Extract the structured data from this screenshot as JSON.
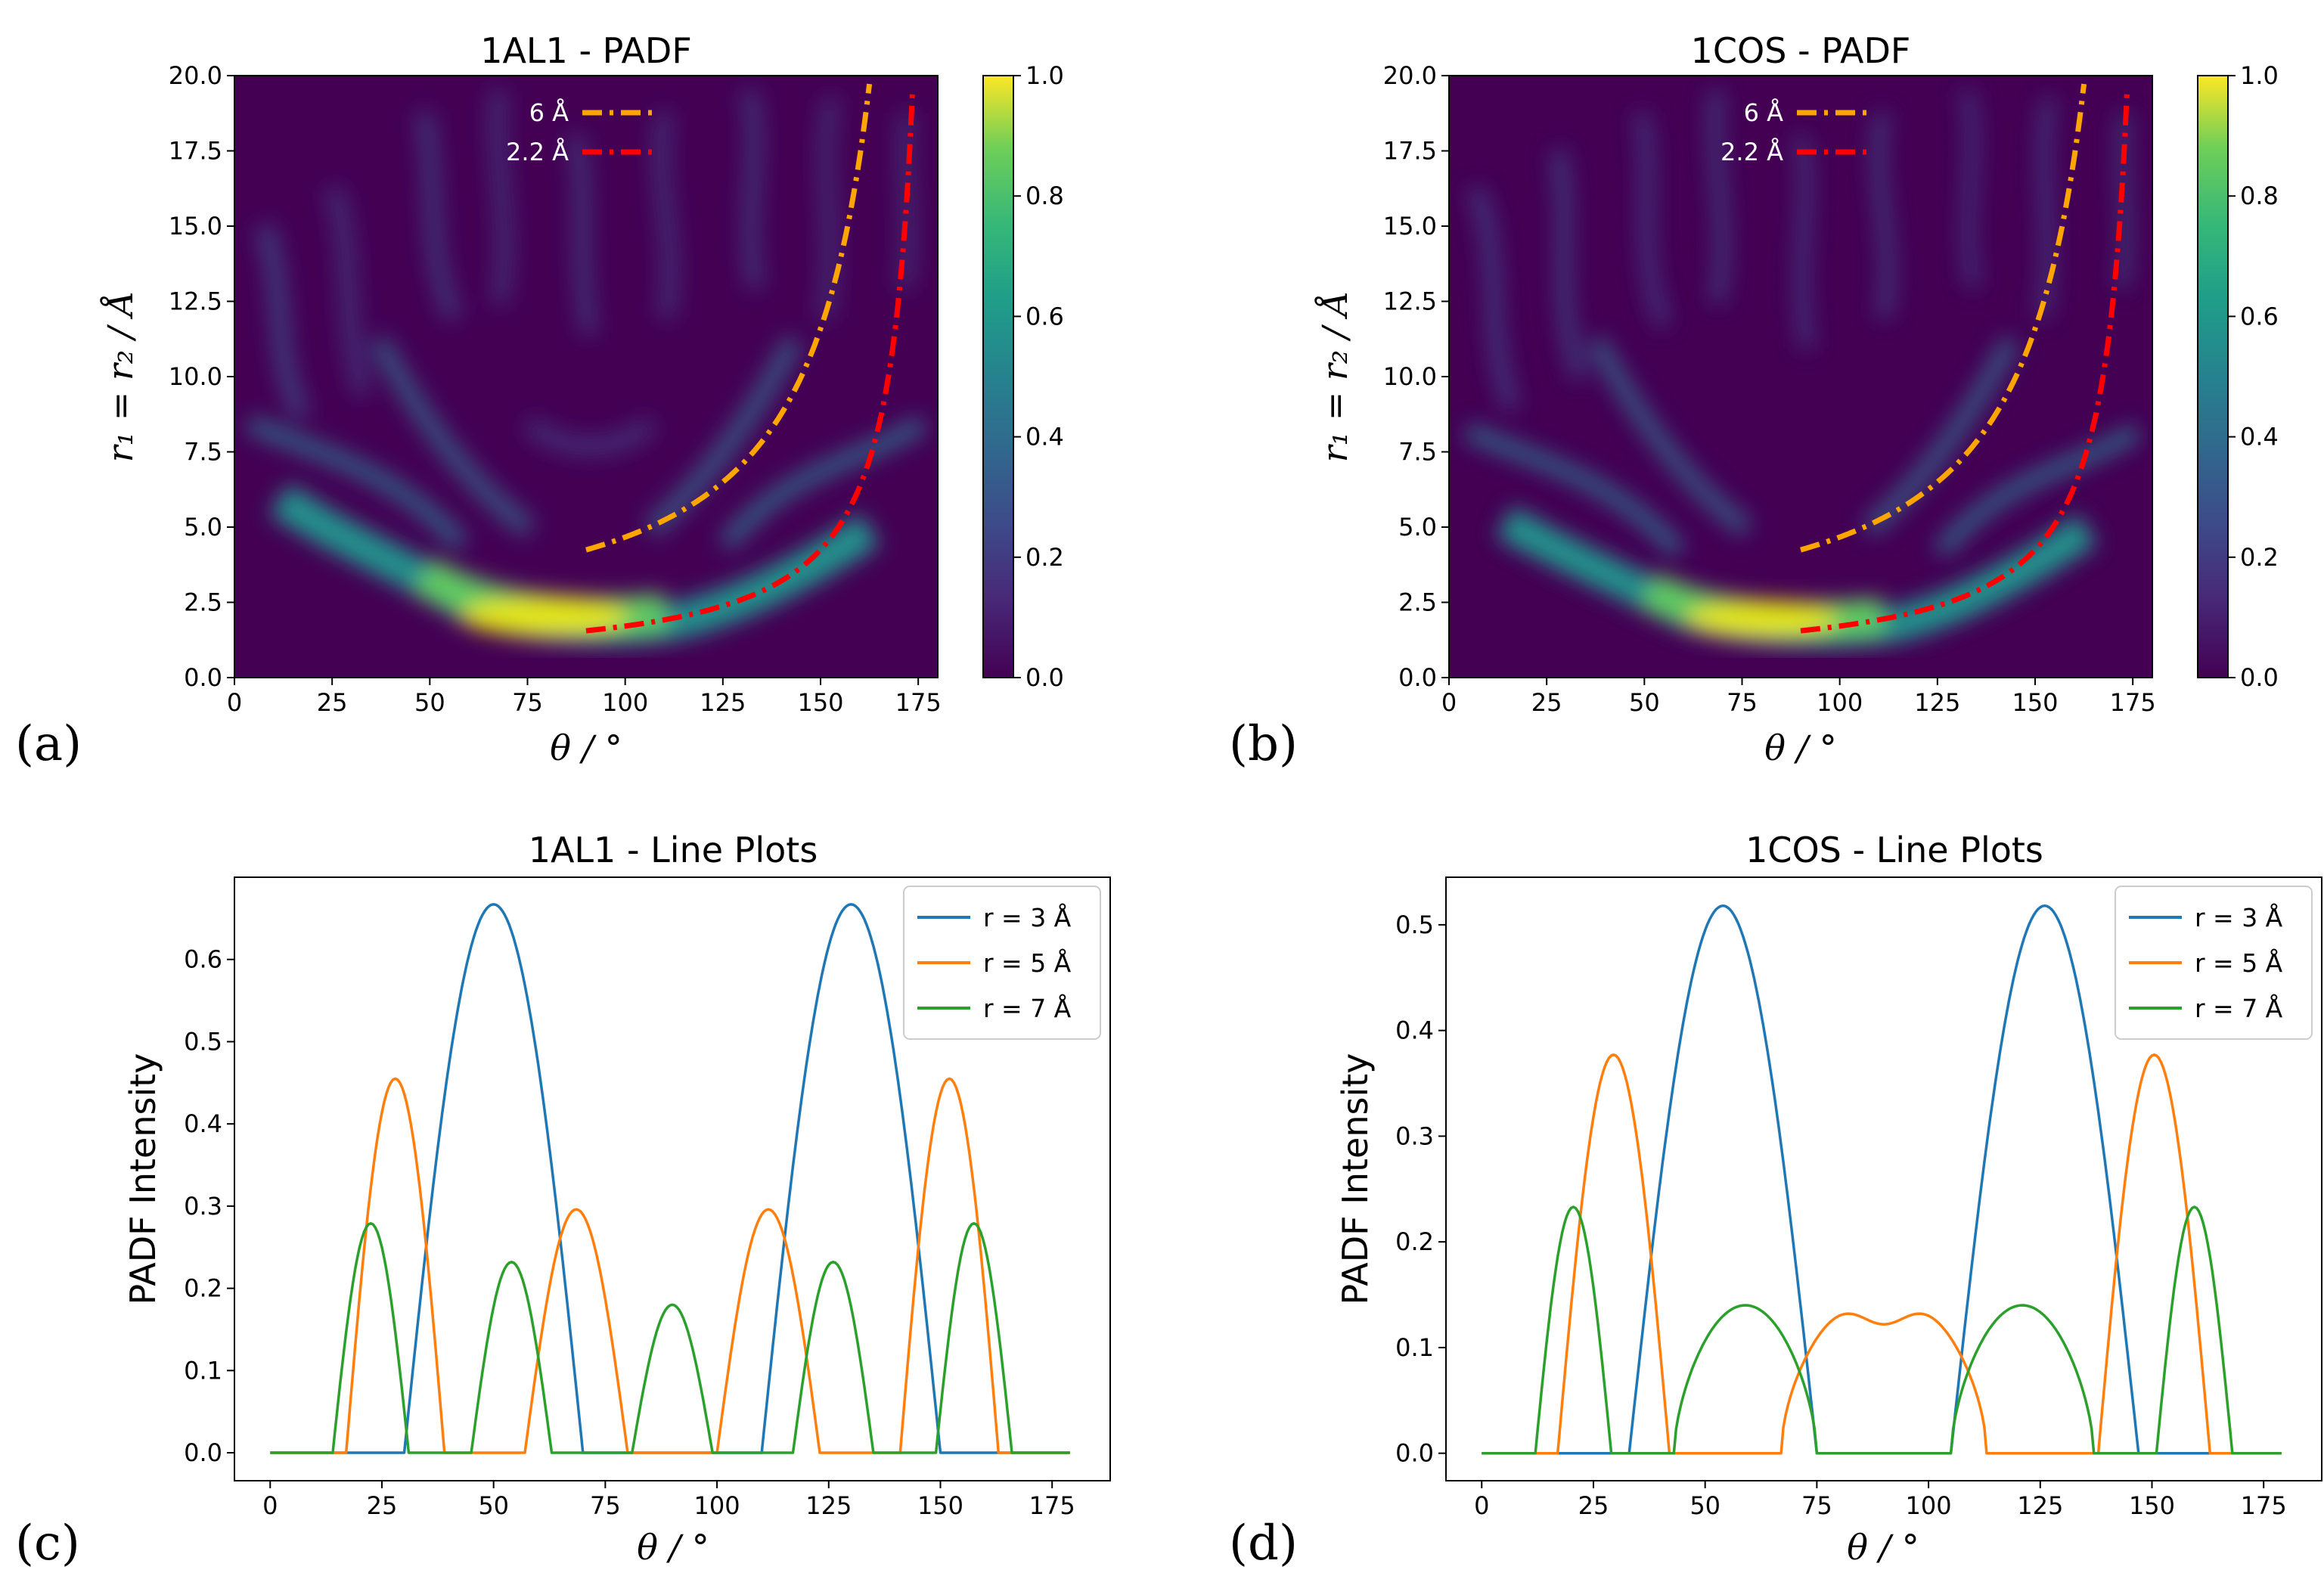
{
  "colors": {
    "viridis_dark": "#440154",
    "series_blue": "#1f77b4",
    "series_orange": "#ff7f0e",
    "series_green": "#2ca02c",
    "guide_orange": "#ffa500",
    "guide_red": "#ff0000"
  },
  "chart_data": [
    {
      "id": "a",
      "type": "heatmap",
      "panel_label": "(a)",
      "title": "1AL1 - PADF",
      "xlabel": "θ / °",
      "ylabel": "r₁ = r₂ / Å",
      "xlim": [
        0,
        180
      ],
      "ylim": [
        0,
        20
      ],
      "xticks": [
        "0",
        "25",
        "50",
        "75",
        "100",
        "125",
        "150",
        "175"
      ],
      "yticks": [
        "0.0",
        "2.5",
        "5.0",
        "7.5",
        "10.0",
        "12.5",
        "15.0",
        "17.5",
        "20.0"
      ],
      "colorbar": {
        "min": 0,
        "max": 1,
        "ticks": [
          "0.0",
          "0.2",
          "0.4",
          "0.6",
          "0.8",
          "1.0"
        ],
        "colormap": "viridis"
      },
      "overlay_lines": [
        {
          "label": "6 Å",
          "color": "#ffa500",
          "style": "dash-dot",
          "distance": 6,
          "theta_start": 90
        },
        {
          "label": "2.2 Å",
          "color": "#ff0000",
          "style": "dash-dot",
          "distance": 2.2,
          "theta_start": 90
        }
      ],
      "legend_position": "top-center"
    },
    {
      "id": "b",
      "type": "heatmap",
      "panel_label": "(b)",
      "title": "1COS - PADF",
      "xlabel": "θ / °",
      "ylabel": "r₁ = r₂ / Å",
      "xlim": [
        0,
        180
      ],
      "ylim": [
        0,
        20
      ],
      "xticks": [
        "0",
        "25",
        "50",
        "75",
        "100",
        "125",
        "150",
        "175"
      ],
      "yticks": [
        "0.0",
        "2.5",
        "5.0",
        "7.5",
        "10.0",
        "12.5",
        "15.0",
        "17.5",
        "20.0"
      ],
      "colorbar": {
        "min": 0,
        "max": 1,
        "ticks": [
          "0.0",
          "0.2",
          "0.4",
          "0.6",
          "0.8",
          "1.0"
        ],
        "colormap": "viridis"
      },
      "overlay_lines": [
        {
          "label": "6 Å",
          "color": "#ffa500",
          "style": "dash-dot",
          "distance": 6,
          "theta_start": 90
        },
        {
          "label": "2.2 Å",
          "color": "#ff0000",
          "style": "dash-dot",
          "distance": 2.2,
          "theta_start": 90
        }
      ],
      "legend_position": "top-center"
    },
    {
      "id": "c",
      "type": "line",
      "panel_label": "(c)",
      "title": "1AL1 - Line Plots",
      "xlabel": "θ / °",
      "ylabel": "PADF Intensity",
      "xlim": [
        -8,
        188
      ],
      "ylim": [
        -0.034,
        0.7
      ],
      "xticks": [
        0,
        25,
        50,
        75,
        100,
        125,
        150,
        175
      ],
      "yticks": [
        0.0,
        0.1,
        0.2,
        0.3,
        0.4,
        0.5,
        0.6
      ],
      "ytick_labels": [
        "0.0",
        "0.1",
        "0.2",
        "0.3",
        "0.4",
        "0.5",
        "0.6"
      ],
      "legend_position": "top-right",
      "series": [
        {
          "name": "r = 3 Å",
          "color": "#1f77b4",
          "lobes": [
            [
              30,
              70,
              0.667,
              1.0
            ],
            [
              110,
              150,
              0.667,
              1.0
            ]
          ]
        },
        {
          "name": "r = 5 Å",
          "color": "#ff7f0e",
          "lobes": [
            [
              17,
              39,
              0.455,
              1.0
            ],
            [
              57,
              80,
              0.296,
              1.0
            ],
            [
              100,
              123,
              0.296,
              1.0
            ],
            [
              141,
              163,
              0.455,
              1.0
            ]
          ]
        },
        {
          "name": "r = 7 Å",
          "color": "#2ca02c",
          "lobes": [
            [
              14,
              31,
              0.279,
              1.0
            ],
            [
              45,
              63,
              0.232,
              1.0
            ],
            [
              81,
              99,
              0.18,
              1.0
            ],
            [
              117,
              135,
              0.232,
              1.0
            ],
            [
              149,
              166,
              0.279,
              1.0
            ]
          ]
        }
      ]
    },
    {
      "id": "d",
      "type": "line",
      "panel_label": "(d)",
      "title": "1COS - Line Plots",
      "xlabel": "θ / °",
      "ylabel": "PADF Intensity",
      "xlim": [
        -8,
        188
      ],
      "ylim": [
        -0.026,
        0.545
      ],
      "xticks": [
        0,
        25,
        50,
        75,
        100,
        125,
        150,
        175
      ],
      "yticks": [
        0.0,
        0.1,
        0.2,
        0.3,
        0.4,
        0.5
      ],
      "ytick_labels": [
        "0.0",
        "0.1",
        "0.2",
        "0.3",
        "0.4",
        "0.5"
      ],
      "legend_position": "top-right",
      "series": [
        {
          "name": "r = 3 Å",
          "color": "#1f77b4",
          "lobes": [
            [
              33,
              75,
              0.518,
              1.0
            ],
            [
              105,
              147,
              0.518,
              1.0
            ]
          ]
        },
        {
          "name": "r = 5 Å",
          "color": "#ff7f0e",
          "lobes": [
            [
              17,
              42,
              0.377,
              1.0
            ],
            [
              138,
              163,
              0.377,
              1.0
            ]
          ],
          "hump": {
            "from": 67,
            "to": 113,
            "peak": 0.157,
            "mid": 0.122
          }
        },
        {
          "name": "r = 7 Å",
          "color": "#2ca02c",
          "lobes": [
            [
              12,
              29,
              0.233,
              1.0
            ],
            [
              151,
              168,
              0.233,
              1.0
            ],
            [
              43,
              75,
              0.14,
              0.6
            ],
            [
              105,
              137,
              0.14,
              0.6
            ]
          ]
        }
      ]
    }
  ]
}
